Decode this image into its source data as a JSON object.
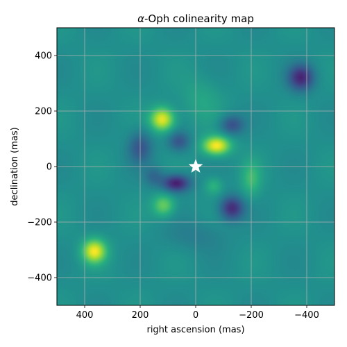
{
  "chart_data": {
    "type": "heatmap",
    "title_symbol": "α",
    "title_rest": "-Oph colinearity map",
    "xlabel": "right ascension (mas)",
    "ylabel": "declination (mas)",
    "xlim": [
      500,
      -500
    ],
    "ylim": [
      -500,
      500
    ],
    "xticks": [
      400,
      200,
      0,
      -200,
      -400
    ],
    "yticks": [
      400,
      200,
      0,
      -200,
      -400
    ],
    "xtick_labels": [
      "400",
      "200",
      "0",
      "−200",
      "−400"
    ],
    "ytick_labels": [
      "400",
      "200",
      "0",
      "−200",
      "−400"
    ],
    "grid": true,
    "colormap": "viridis",
    "background_value": 0.5,
    "blobs": [
      {
        "x": 120,
        "y": 170,
        "sx": 30,
        "sy": 30,
        "amp": 0.95
      },
      {
        "x": -75,
        "y": 75,
        "sx": 35,
        "sy": 24,
        "amp": 1.0
      },
      {
        "x": 365,
        "y": -305,
        "sx": 30,
        "sy": 30,
        "amp": 0.95
      },
      {
        "x": 115,
        "y": -140,
        "sx": 28,
        "sy": 28,
        "amp": 0.55
      },
      {
        "x": -200,
        "y": -45,
        "sx": 25,
        "sy": 45,
        "amp": 0.35
      },
      {
        "x": -65,
        "y": -70,
        "sx": 22,
        "sy": 22,
        "amp": 0.3
      },
      {
        "x": 70,
        "y": -60,
        "sx": 35,
        "sy": 22,
        "amp": -0.85
      },
      {
        "x": -130,
        "y": -150,
        "sx": 30,
        "sy": 30,
        "amp": -0.75
      },
      {
        "x": -380,
        "y": 320,
        "sx": 32,
        "sy": 32,
        "amp": -0.75
      },
      {
        "x": 60,
        "y": 90,
        "sx": 28,
        "sy": 25,
        "amp": -0.45
      },
      {
        "x": 200,
        "y": 70,
        "sx": 30,
        "sy": 40,
        "amp": -0.45
      },
      {
        "x": -130,
        "y": 150,
        "sx": 30,
        "sy": 25,
        "amp": -0.5
      },
      {
        "x": 150,
        "y": -35,
        "sx": 25,
        "sy": 25,
        "amp": -0.3
      },
      {
        "x": -20,
        "y": 240,
        "sx": 50,
        "sy": 60,
        "amp": 0.18
      },
      {
        "x": 0,
        "y": -250,
        "sx": 80,
        "sy": 40,
        "amp": -0.15
      }
    ],
    "markers": [
      {
        "x": 0,
        "y": 0,
        "shape": "star",
        "color": "#ffffff"
      }
    ]
  }
}
